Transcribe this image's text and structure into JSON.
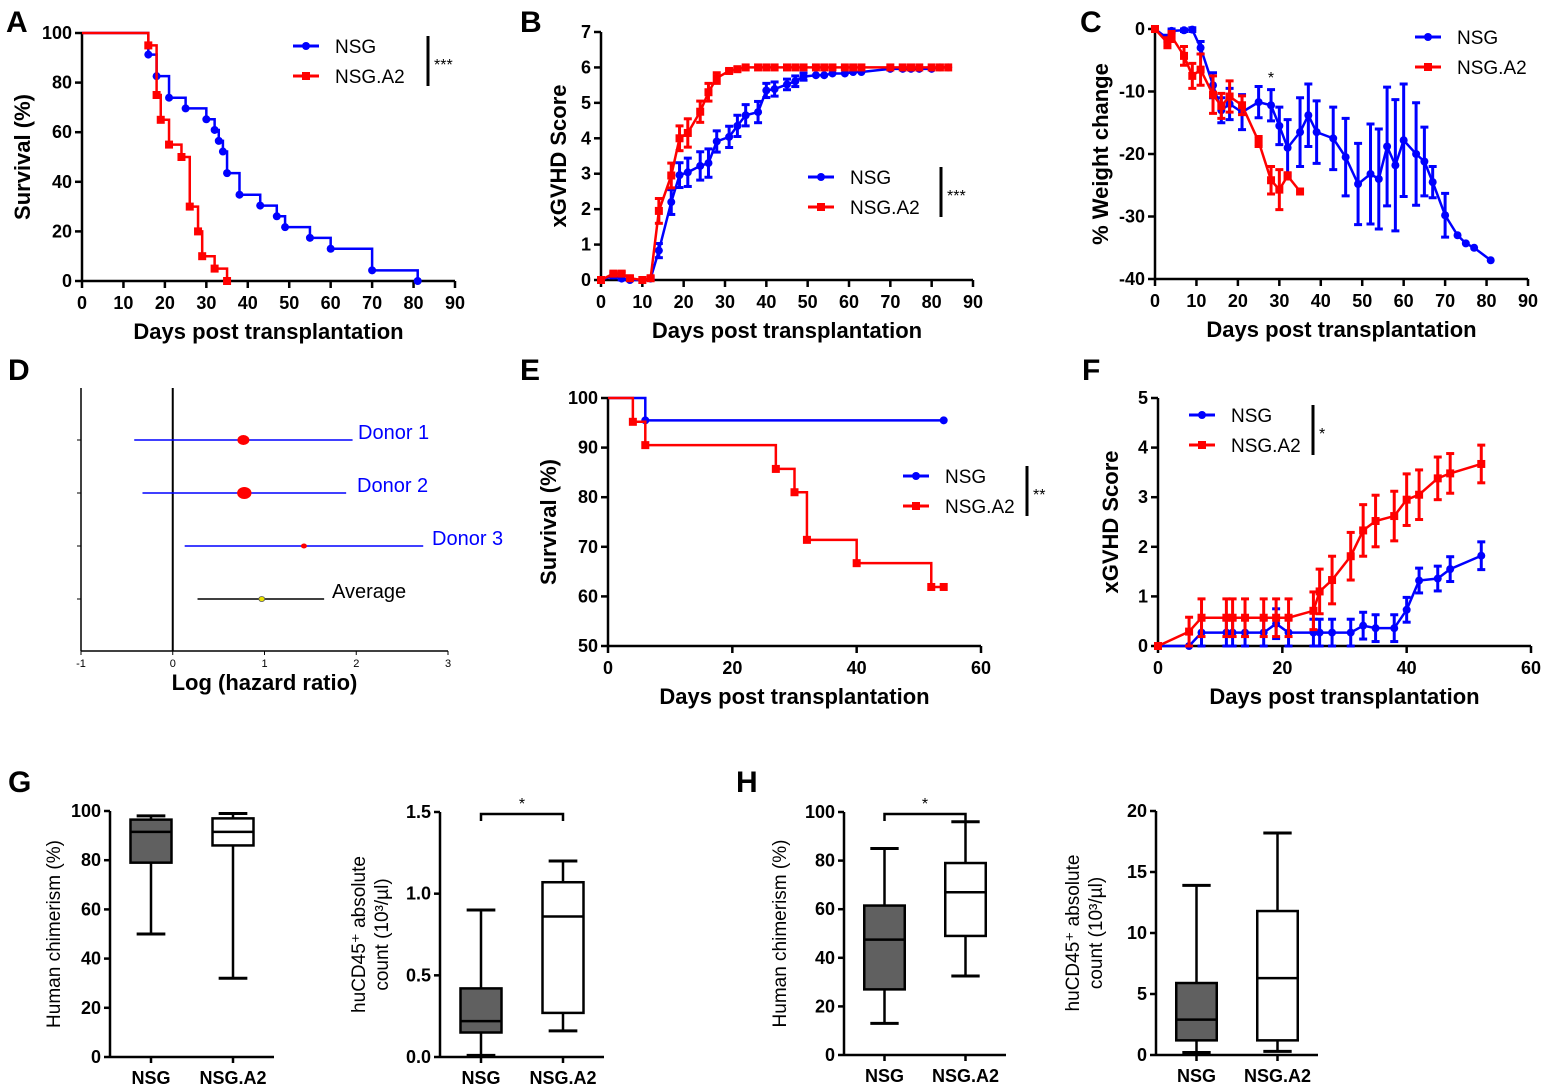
{
  "colors": {
    "nsg": "#0000ff",
    "nsga2": "#ff0000",
    "box_fill_nsg": "#606060",
    "box_fill_nsga2": "#ffffff",
    "average": "#000000",
    "average_point": "#e8e000"
  },
  "chart_data": [
    {
      "panel": "A",
      "type": "line",
      "subtype": "kaplan-meier",
      "xlabel": "Days post transplantation",
      "ylabel": "Survival (%)",
      "xlim": [
        0,
        90
      ],
      "ylim": [
        0,
        100
      ],
      "xticks": [
        "0",
        "10",
        "20",
        "30",
        "40",
        "50",
        "60",
        "70",
        "80",
        "90"
      ],
      "yticks": [
        "0",
        "20",
        "40",
        "60",
        "80",
        "100"
      ],
      "legend": {
        "position": "top-right",
        "significance": "***"
      },
      "series": [
        {
          "name": "NSG",
          "marker": "circle",
          "x": [
            0,
            16,
            18,
            21,
            25,
            30,
            32,
            33,
            34,
            35,
            38,
            43,
            47,
            49,
            55,
            60,
            70,
            81
          ],
          "y": [
            100,
            91.3,
            82.6,
            73.9,
            69.6,
            65.2,
            60.9,
            56.5,
            52.2,
            43.5,
            34.8,
            30.4,
            26.1,
            21.7,
            17.4,
            13.0,
            4.3,
            0
          ]
        },
        {
          "name": "NSG.A2",
          "marker": "square",
          "x": [
            0,
            16,
            18,
            19,
            21,
            24,
            26,
            28,
            29,
            32,
            35
          ],
          "y": [
            100,
            95,
            75,
            65,
            55,
            50,
            30,
            20,
            10,
            5,
            0
          ]
        }
      ]
    },
    {
      "panel": "B",
      "type": "line",
      "xlabel": "Days post transplantation",
      "ylabel": "xGVHD Score",
      "xlim": [
        0,
        90
      ],
      "ylim": [
        0,
        7
      ],
      "xticks": [
        "0",
        "10",
        "20",
        "30",
        "40",
        "50",
        "60",
        "70",
        "80",
        "90"
      ],
      "yticks": [
        "0",
        "1",
        "2",
        "3",
        "4",
        "5",
        "6",
        "7"
      ],
      "legend": {
        "position": "center-right",
        "significance": "***"
      },
      "series": [
        {
          "name": "NSG",
          "marker": "circle",
          "x": [
            0,
            3,
            5,
            7,
            10,
            12,
            14,
            17,
            19,
            21,
            24,
            26,
            28,
            31,
            33,
            35,
            38,
            40,
            42,
            45,
            47,
            49,
            52,
            54,
            56,
            59,
            61,
            63,
            70,
            73,
            75,
            77,
            80,
            82,
            84
          ],
          "y": [
            0,
            0.13,
            0.04,
            0,
            0,
            0.04,
            0.83,
            2.2,
            2.96,
            3.04,
            3.22,
            3.3,
            3.91,
            4.04,
            4.35,
            4.65,
            4.74,
            5.35,
            5.39,
            5.52,
            5.61,
            5.74,
            5.78,
            5.78,
            5.83,
            5.83,
            5.87,
            5.87,
            5.96,
            5.96,
            5.96,
            5.96,
            5.96,
            6,
            6
          ],
          "err": [
            0,
            0.07,
            0.04,
            0,
            0,
            0.04,
            0.2,
            0.35,
            0.35,
            0.4,
            0.4,
            0.4,
            0.3,
            0.3,
            0.3,
            0.3,
            0.3,
            0.2,
            0.2,
            0.15,
            0.15,
            0.1,
            0,
            0,
            0,
            0,
            0,
            0,
            0,
            0,
            0,
            0,
            0,
            0,
            0
          ]
        },
        {
          "name": "NSG.A2",
          "marker": "square",
          "x": [
            0,
            3,
            5,
            7,
            10,
            12,
            14,
            17,
            19,
            21,
            24,
            26,
            28,
            31,
            33,
            35,
            38,
            40,
            42,
            45,
            47,
            49,
            52,
            54,
            56,
            59,
            61,
            63,
            70,
            73,
            75,
            77,
            80,
            82,
            84
          ],
          "y": [
            0,
            0.18,
            0.18,
            0.05,
            0,
            0.05,
            1.95,
            2.95,
            4.0,
            4.15,
            4.75,
            5.3,
            5.7,
            5.9,
            5.95,
            6,
            6,
            6,
            6,
            6,
            6,
            6,
            6,
            6,
            6,
            6,
            6,
            6,
            6,
            6,
            6,
            6,
            6,
            6,
            6
          ],
          "err": [
            0,
            0.05,
            0.05,
            0.05,
            0,
            0.05,
            0.35,
            0.35,
            0.35,
            0.4,
            0.3,
            0.25,
            0.15,
            0.05,
            0.05,
            0,
            0,
            0,
            0,
            0,
            0,
            0,
            0,
            0,
            0,
            0,
            0,
            0,
            0,
            0,
            0,
            0,
            0,
            0,
            0
          ]
        }
      ]
    },
    {
      "panel": "C",
      "type": "line",
      "xlabel": "Days post transplantation",
      "ylabel": "% Weight change",
      "xlim": [
        0,
        90
      ],
      "ylim": [
        -40,
        0
      ],
      "xticks": [
        "0",
        "10",
        "20",
        "30",
        "40",
        "50",
        "60",
        "70",
        "80",
        "90"
      ],
      "yticks": [
        "-40",
        "-30",
        "-20",
        "-10",
        "0"
      ],
      "legend": {
        "position": "top-right"
      },
      "annotations": [
        {
          "text": "*",
          "x": 28,
          "y": -7
        }
      ],
      "series": [
        {
          "name": "NSG",
          "marker": "circle",
          "x": [
            0,
            3,
            4,
            7,
            9,
            11,
            14,
            16,
            18,
            21,
            25,
            28,
            30,
            32,
            35,
            37,
            39,
            43,
            46,
            49,
            52,
            54,
            56,
            58,
            60,
            63,
            65,
            67,
            70,
            73,
            75,
            77,
            81
          ],
          "y": [
            0,
            -1.5,
            -0.3,
            -0.2,
            -0.1,
            -3,
            -9,
            -13,
            -12,
            -13.3,
            -11.7,
            -12.2,
            -15.5,
            -19,
            -16.5,
            -13.8,
            -16.5,
            -17.5,
            -20.5,
            -24.8,
            -23.2,
            -24,
            -18.8,
            -21.8,
            -17.8,
            -20,
            -21.2,
            -24.5,
            -29.8,
            -33,
            -34.3,
            -35,
            -37
          ],
          "err": [
            0,
            0.5,
            0.3,
            0.2,
            0.3,
            1,
            2,
            2,
            2.5,
            2.8,
            2.5,
            2.5,
            3,
            4.5,
            5.5,
            5,
            5,
            5,
            6.2,
            6.5,
            8,
            8,
            9.5,
            10.5,
            9,
            8.2,
            5.5,
            2.5,
            3.5,
            0,
            0,
            0,
            0
          ]
        },
        {
          "name": "NSG.A2",
          "marker": "square",
          "x": [
            0,
            3,
            4,
            7,
            9,
            11,
            14,
            16,
            18,
            21,
            25,
            28,
            30,
            32,
            35
          ],
          "y": [
            0,
            -2.2,
            -1.2,
            -4.3,
            -7.5,
            -6.5,
            -10.5,
            -12.3,
            -10.8,
            -12.2,
            -18,
            -24.2,
            -25.7,
            -23.5,
            -26
          ],
          "err": [
            0,
            0.8,
            0.8,
            1.5,
            2,
            2.5,
            3,
            2,
            2.5,
            1.5,
            0.8,
            2.2,
            3.2,
            0.5,
            0
          ]
        }
      ]
    },
    {
      "panel": "D",
      "type": "scatter",
      "subtype": "forest-plot",
      "xlabel": "Log (hazard ratio)",
      "xlim": [
        -1,
        3
      ],
      "xticks": [
        "-1",
        "0",
        "1",
        "2",
        "3"
      ],
      "reference_line_x": 0,
      "rows": [
        {
          "label": "Donor 1",
          "estimate": 0.77,
          "ci": [
            -0.42,
            1.96
          ],
          "color": "#0000ff",
          "point_color": "#ff0000",
          "weight": "medium"
        },
        {
          "label": "Donor 2",
          "estimate": 0.78,
          "ci": [
            -0.33,
            1.89
          ],
          "color": "#0000ff",
          "point_color": "#ff0000",
          "weight": "large"
        },
        {
          "label": "Donor 3",
          "estimate": 1.43,
          "ci": [
            0.13,
            2.73
          ],
          "color": "#0000ff",
          "point_color": "#ff0000",
          "weight": "small"
        },
        {
          "label": "Average",
          "estimate": 0.97,
          "ci": [
            0.27,
            1.65
          ],
          "color": "#000000",
          "point_color": "#e8e000",
          "weight": "small"
        }
      ]
    },
    {
      "panel": "E",
      "type": "line",
      "subtype": "kaplan-meier",
      "xlabel": "Days post transplantation",
      "ylabel": "Survival (%)",
      "xlim": [
        0,
        60
      ],
      "ylim": [
        50,
        100
      ],
      "xticks": [
        "0",
        "20",
        "40",
        "60"
      ],
      "yticks": [
        "50",
        "60",
        "70",
        "80",
        "90",
        "100"
      ],
      "legend": {
        "position": "center-right",
        "significance": "**"
      },
      "series": [
        {
          "name": "NSG",
          "marker": "circle",
          "x": [
            0,
            6,
            54
          ],
          "y": [
            100,
            95.5,
            95.5
          ]
        },
        {
          "name": "NSG.A2",
          "marker": "square",
          "x": [
            0,
            4,
            6,
            27,
            30,
            32,
            40,
            52,
            54
          ],
          "y": [
            100,
            95.2,
            90.5,
            85.7,
            81.0,
            71.4,
            66.7,
            61.9,
            61.9
          ]
        }
      ]
    },
    {
      "panel": "F",
      "type": "line",
      "xlabel": "Days post transplantation",
      "ylabel": "xGVHD Score",
      "xlim": [
        0,
        60
      ],
      "ylim": [
        0,
        5
      ],
      "xticks": [
        "0",
        "20",
        "40",
        "60"
      ],
      "yticks": [
        "0",
        "1",
        "2",
        "3",
        "4",
        "5"
      ],
      "legend": {
        "position": "top-left",
        "significance": "*"
      },
      "series": [
        {
          "name": "NSG",
          "marker": "circle",
          "x": [
            0,
            5,
            7,
            11,
            12,
            14,
            17,
            19,
            21,
            25,
            26,
            28,
            31,
            33,
            35,
            38,
            40,
            42,
            45,
            47,
            52
          ],
          "y": [
            0,
            0,
            0.27,
            0.27,
            0.27,
            0.27,
            0.27,
            0.45,
            0.27,
            0.27,
            0.27,
            0.27,
            0.27,
            0.41,
            0.36,
            0.36,
            0.73,
            1.32,
            1.36,
            1.55,
            1.82
          ],
          "err": [
            0,
            0,
            0.27,
            0.27,
            0.27,
            0.27,
            0.27,
            0.3,
            0.27,
            0.27,
            0.27,
            0.27,
            0.27,
            0.27,
            0.27,
            0.27,
            0.25,
            0.25,
            0.25,
            0.25,
            0.28
          ]
        },
        {
          "name": "NSG.A2",
          "marker": "square",
          "x": [
            0,
            5,
            7,
            11,
            12,
            14,
            17,
            19,
            21,
            25,
            26,
            28,
            31,
            33,
            35,
            38,
            40,
            42,
            45,
            47,
            52
          ],
          "y": [
            0,
            0.29,
            0.57,
            0.57,
            0.57,
            0.57,
            0.57,
            0.57,
            0.57,
            0.71,
            1.1,
            1.33,
            1.81,
            2.33,
            2.52,
            2.62,
            2.95,
            3.05,
            3.38,
            3.48,
            3.67
          ],
          "err": [
            0,
            0.29,
            0.38,
            0.38,
            0.38,
            0.38,
            0.38,
            0.38,
            0.38,
            0.38,
            0.45,
            0.48,
            0.48,
            0.52,
            0.52,
            0.5,
            0.52,
            0.5,
            0.43,
            0.4,
            0.38
          ]
        }
      ]
    },
    {
      "panel": "G1",
      "type": "box",
      "ylabel": "Human chimerism (%)",
      "ylim": [
        0,
        100
      ],
      "yticks": [
        "0",
        "20",
        "40",
        "60",
        "80",
        "100"
      ],
      "categories": [
        "NSG",
        "NSG.A2"
      ],
      "boxes": [
        {
          "min": 50,
          "q1": 79,
          "median": 91.5,
          "q3": 96.5,
          "max": 98
        },
        {
          "min": 32,
          "q1": 86,
          "median": 91.5,
          "q3": 97,
          "max": 99
        }
      ]
    },
    {
      "panel": "G2",
      "type": "box",
      "ylabel_line1": "huCD45⁺ absolute",
      "ylabel_line2": "count (10³/µl)",
      "ylim": [
        0,
        1.5
      ],
      "yticks": [
        "0.0",
        "0.5",
        "1.0",
        "1.5"
      ],
      "categories": [
        "NSG",
        "NSG.A2"
      ],
      "significance": "*",
      "boxes": [
        {
          "min": 0.01,
          "q1": 0.15,
          "median": 0.22,
          "q3": 0.42,
          "max": 0.9
        },
        {
          "min": 0.16,
          "q1": 0.27,
          "median": 0.86,
          "q3": 1.07,
          "max": 1.2
        }
      ]
    },
    {
      "panel": "H1",
      "type": "box",
      "ylabel": "Human chimerism (%)",
      "ylim": [
        0,
        100
      ],
      "yticks": [
        "0",
        "20",
        "40",
        "60",
        "80",
        "100"
      ],
      "categories": [
        "NSG",
        "NSG.A2"
      ],
      "significance": "*",
      "boxes": [
        {
          "min": 13,
          "q1": 27,
          "median": 47.5,
          "q3": 61.5,
          "max": 85
        },
        {
          "min": 32.5,
          "q1": 49,
          "median": 67,
          "q3": 79,
          "max": 96
        }
      ]
    },
    {
      "panel": "H2",
      "type": "box",
      "ylabel_line1": "huCD45⁺ absolute",
      "ylabel_line2": "count (10³/µl)",
      "ylim": [
        0,
        20
      ],
      "yticks": [
        "0",
        "5",
        "10",
        "15",
        "20"
      ],
      "categories": [
        "NSG",
        "NSG.A2"
      ],
      "boxes": [
        {
          "min": 0.2,
          "q1": 1.2,
          "median": 2.9,
          "q3": 5.9,
          "max": 13.9
        },
        {
          "min": 0.3,
          "q1": 1.2,
          "median": 6.3,
          "q3": 11.8,
          "max": 18.2
        }
      ]
    }
  ],
  "panel_labels": [
    "A",
    "B",
    "C",
    "D",
    "E",
    "F",
    "G",
    "H"
  ]
}
